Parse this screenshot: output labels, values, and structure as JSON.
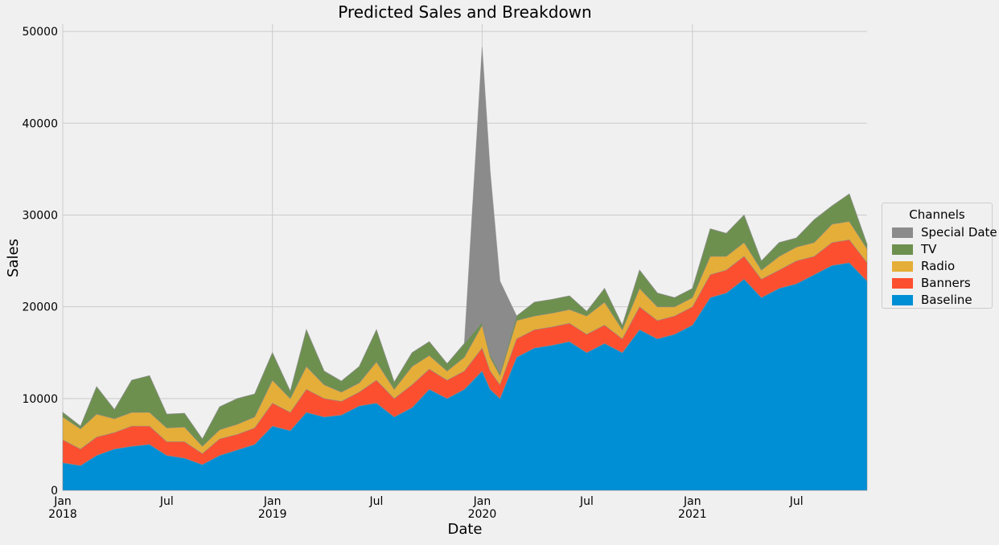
{
  "chart_data": {
    "type": "area",
    "stacked": true,
    "title": "Predicted Sales and Breakdown",
    "xlabel": "Date",
    "ylabel": "Sales",
    "ylim": [
      0,
      50800
    ],
    "grid": true,
    "legend": {
      "title": "Channels",
      "placement": "outside-right"
    },
    "y_ticks": [
      0,
      10000,
      20000,
      30000,
      40000,
      50000
    ],
    "x_ticks": [
      {
        "date": "2018-01-01",
        "label": "Jan",
        "sub": "2018"
      },
      {
        "date": "2018-07-01",
        "label": "Jul",
        "sub": ""
      },
      {
        "date": "2019-01-01",
        "label": "Jan",
        "sub": "2019"
      },
      {
        "date": "2019-07-01",
        "label": "Jul",
        "sub": ""
      },
      {
        "date": "2020-01-01",
        "label": "Jan",
        "sub": "2020"
      },
      {
        "date": "2020-07-01",
        "label": "Jul",
        "sub": ""
      },
      {
        "date": "2021-01-01",
        "label": "Jan",
        "sub": "2021"
      },
      {
        "date": "2021-07-01",
        "label": "Jul",
        "sub": ""
      }
    ],
    "x": [
      "2018-01-01",
      "2018-02-01",
      "2018-03-01",
      "2018-04-01",
      "2018-05-01",
      "2018-06-01",
      "2018-07-01",
      "2018-08-01",
      "2018-09-01",
      "2018-10-01",
      "2018-11-01",
      "2018-12-01",
      "2019-01-01",
      "2019-02-01",
      "2019-03-01",
      "2019-04-01",
      "2019-05-01",
      "2019-06-01",
      "2019-07-01",
      "2019-08-01",
      "2019-09-01",
      "2019-10-01",
      "2019-11-01",
      "2019-12-01",
      "2020-01-01",
      "2020-01-15",
      "2020-02-01",
      "2020-03-01",
      "2020-04-01",
      "2020-05-01",
      "2020-06-01",
      "2020-07-01",
      "2020-08-01",
      "2020-09-01",
      "2020-10-01",
      "2020-11-01",
      "2020-12-01",
      "2021-01-01",
      "2021-02-01",
      "2021-03-01",
      "2021-04-01",
      "2021-05-01",
      "2021-06-01",
      "2021-07-01",
      "2021-08-01",
      "2021-09-01",
      "2021-10-01",
      "2021-11-01"
    ],
    "series": [
      {
        "name": "Baseline",
        "color": "#008fd5",
        "values": [
          3000,
          2700,
          3800,
          4500,
          4800,
          5000,
          3800,
          3500,
          2800,
          3800,
          4400,
          5000,
          7000,
          6500,
          8500,
          8000,
          8200,
          9200,
          9500,
          8000,
          9000,
          11000,
          10000,
          11000,
          13000,
          11000,
          10000,
          14500,
          15500,
          15800,
          16200,
          15000,
          16000,
          15000,
          17500,
          16500,
          17000,
          18000,
          21000,
          21500,
          23000,
          21000,
          22000,
          22500,
          23500,
          24500,
          24800,
          22800
        ]
      },
      {
        "name": "Banners",
        "color": "#fc4f30",
        "values": [
          2500,
          1800,
          2000,
          1800,
          2200,
          2000,
          1500,
          1800,
          1200,
          1800,
          1700,
          1800,
          2500,
          2000,
          2500,
          2000,
          1500,
          1500,
          2500,
          2000,
          2500,
          2200,
          2000,
          2000,
          2500,
          2000,
          1500,
          2000,
          2000,
          2000,
          2000,
          2000,
          2000,
          1500,
          2500,
          2000,
          2000,
          2000,
          2500,
          2500,
          2500,
          2000,
          2000,
          2500,
          2000,
          2500,
          2500,
          2000
        ]
      },
      {
        "name": "Radio",
        "color": "#e5ae38",
        "values": [
          2500,
          2200,
          2500,
          1500,
          1500,
          1500,
          1500,
          1600,
          800,
          1000,
          1100,
          1200,
          2500,
          1500,
          2500,
          1500,
          1000,
          1000,
          2000,
          1000,
          2000,
          1500,
          1000,
          1500,
          2500,
          1500,
          1000,
          2000,
          1500,
          1500,
          1500,
          2000,
          2500,
          1000,
          2000,
          1500,
          1000,
          1000,
          2000,
          1500,
          1500,
          1000,
          1500,
          1500,
          1500,
          2000,
          2000,
          1500
        ]
      },
      {
        "name": "TV",
        "color": "#6d904f",
        "values": [
          500,
          300,
          3000,
          1000,
          3500,
          4000,
          1500,
          1500,
          800,
          2500,
          2800,
          2500,
          3000,
          800,
          4000,
          1500,
          1200,
          1800,
          3500,
          800,
          1500,
          1500,
          800,
          1500,
          300,
          300,
          300,
          500,
          1500,
          1500,
          1500,
          500,
          1500,
          500,
          2000,
          1500,
          1000,
          1000,
          3000,
          2500,
          3000,
          1000,
          1500,
          1000,
          2500,
          2000,
          3000,
          500
        ]
      },
      {
        "name": "Special Date",
        "color": "#8b8b8b",
        "values": [
          0,
          0,
          0,
          0,
          0,
          0,
          0,
          0,
          0,
          0,
          0,
          0,
          0,
          0,
          0,
          0,
          0,
          0,
          0,
          0,
          0,
          0,
          0,
          0,
          30000,
          20000,
          10000,
          0,
          0,
          0,
          0,
          0,
          0,
          0,
          0,
          0,
          0,
          0,
          0,
          0,
          0,
          0,
          0,
          0,
          0,
          0,
          0,
          0
        ]
      }
    ]
  }
}
